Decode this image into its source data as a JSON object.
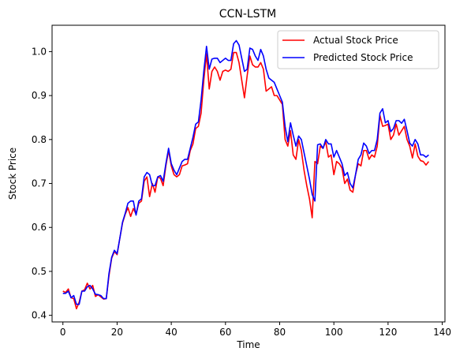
{
  "chart_data": {
    "type": "line",
    "title": "CCN-LSTM",
    "xlabel": "Time",
    "ylabel": "Stock Price",
    "xlim": [
      -4,
      141
    ],
    "ylim": [
      0.385,
      1.06
    ],
    "xticks": [
      0,
      20,
      40,
      60,
      80,
      100,
      120,
      140
    ],
    "yticks": [
      0.4,
      0.5,
      0.6,
      0.7,
      0.8,
      0.9,
      1.0
    ],
    "xtick_labels": [
      "0",
      "20",
      "40",
      "60",
      "80",
      "100",
      "120",
      "140"
    ],
    "ytick_labels": [
      "0.4",
      "0.5",
      "0.6",
      "0.7",
      "0.8",
      "0.9",
      "1.0"
    ],
    "grid": false,
    "legend_position": "top-right",
    "series": [
      {
        "name": "Actual Stock Price",
        "color": "#ff0000",
        "values": [
          0.455,
          0.452,
          0.46,
          0.44,
          0.438,
          0.415,
          0.43,
          0.455,
          0.458,
          0.473,
          0.46,
          0.468,
          0.443,
          0.447,
          0.442,
          0.437,
          0.438,
          0.49,
          0.53,
          0.545,
          0.538,
          0.575,
          0.61,
          0.63,
          0.645,
          0.625,
          0.643,
          0.63,
          0.655,
          0.66,
          0.705,
          0.715,
          0.67,
          0.7,
          0.68,
          0.715,
          0.712,
          0.695,
          0.74,
          0.775,
          0.74,
          0.72,
          0.715,
          0.72,
          0.74,
          0.742,
          0.745,
          0.775,
          0.79,
          0.825,
          0.83,
          0.86,
          0.935,
          0.995,
          0.915,
          0.955,
          0.965,
          0.955,
          0.935,
          0.955,
          0.958,
          0.955,
          0.96,
          0.998,
          0.998,
          0.975,
          0.935,
          0.895,
          0.945,
          0.99,
          0.97,
          0.965,
          0.965,
          0.975,
          0.96,
          0.91,
          0.915,
          0.92,
          0.9,
          0.9,
          0.89,
          0.88,
          0.8,
          0.785,
          0.82,
          0.765,
          0.755,
          0.8,
          0.775,
          0.73,
          0.695,
          0.665,
          0.622,
          0.75,
          0.745,
          0.785,
          0.78,
          0.795,
          0.76,
          0.765,
          0.72,
          0.75,
          0.745,
          0.735,
          0.7,
          0.71,
          0.685,
          0.68,
          0.72,
          0.745,
          0.74,
          0.775,
          0.775,
          0.755,
          0.765,
          0.76,
          0.785,
          0.855,
          0.83,
          0.832,
          0.835,
          0.8,
          0.81,
          0.835,
          0.81,
          0.82,
          0.83,
          0.8,
          0.785,
          0.758,
          0.79,
          0.762,
          0.752,
          0.75,
          0.742,
          0.75
        ]
      },
      {
        "name": "Predicted Stock Price",
        "color": "#0000ff",
        "values": [
          0.45,
          0.45,
          0.455,
          0.44,
          0.445,
          0.425,
          0.425,
          0.455,
          0.455,
          0.465,
          0.468,
          0.46,
          0.448,
          0.447,
          0.445,
          0.438,
          0.438,
          0.495,
          0.532,
          0.548,
          0.54,
          0.575,
          0.612,
          0.632,
          0.655,
          0.66,
          0.66,
          0.628,
          0.66,
          0.665,
          0.715,
          0.725,
          0.72,
          0.695,
          0.695,
          0.715,
          0.718,
          0.705,
          0.745,
          0.78,
          0.745,
          0.73,
          0.72,
          0.735,
          0.75,
          0.755,
          0.755,
          0.78,
          0.805,
          0.835,
          0.84,
          0.89,
          0.955,
          1.012,
          0.96,
          0.983,
          0.985,
          0.985,
          0.975,
          0.98,
          0.985,
          0.98,
          0.98,
          1.018,
          1.025,
          1.015,
          0.985,
          0.955,
          0.96,
          1.008,
          1.005,
          0.99,
          0.98,
          1.005,
          0.99,
          0.96,
          0.94,
          0.935,
          0.93,
          0.915,
          0.9,
          0.885,
          0.83,
          0.795,
          0.838,
          0.81,
          0.785,
          0.808,
          0.8,
          0.77,
          0.74,
          0.71,
          0.675,
          0.66,
          0.788,
          0.79,
          0.78,
          0.8,
          0.79,
          0.79,
          0.76,
          0.775,
          0.76,
          0.745,
          0.718,
          0.725,
          0.7,
          0.69,
          0.72,
          0.755,
          0.765,
          0.792,
          0.785,
          0.768,
          0.775,
          0.775,
          0.8,
          0.86,
          0.87,
          0.838,
          0.843,
          0.818,
          0.825,
          0.843,
          0.843,
          0.837,
          0.846,
          0.82,
          0.792,
          0.785,
          0.8,
          0.79,
          0.765,
          0.765,
          0.76,
          0.765
        ]
      }
    ]
  }
}
